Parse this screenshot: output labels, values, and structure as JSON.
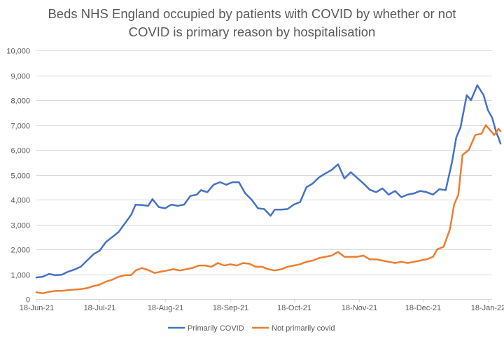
{
  "chart_data": {
    "type": "line",
    "title_lines": [
      "Beds NHS England occupied by patients with COVID by whether or not",
      "COVID is primary reason by hospitalisation"
    ],
    "xlabel": "",
    "ylabel": "",
    "ylim": [
      0,
      10000
    ],
    "y_ticks": [
      0,
      1000,
      2000,
      3000,
      4000,
      5000,
      6000,
      7000,
      8000,
      9000,
      10000
    ],
    "y_tick_labels": [
      "0",
      "1,000",
      "2,000",
      "3,000",
      "4,000",
      "5,000",
      "6,000",
      "7,000",
      "8,000",
      "9,000",
      "10,000"
    ],
    "x_tick_labels": [
      "18-Jun-21",
      "18-Jul-21",
      "18-Aug-21",
      "18-Sep-21",
      "18-Oct-21",
      "18-Nov-21",
      "18-Dec-21",
      "18-Jan-22"
    ],
    "x_ticks": [
      "2021-06-18",
      "2021-07-18",
      "2021-08-18",
      "2021-09-18",
      "2021-10-18",
      "2021-11-18",
      "2021-12-18",
      "2022-01-18"
    ],
    "x_range": [
      "2021-06-18",
      "2022-01-20"
    ],
    "grid": "horizontal",
    "legend_position": "bottom",
    "series": [
      {
        "name": "Primarily COVID",
        "color": "#4472C4",
        "points": [
          [
            "2021-06-18",
            870
          ],
          [
            "2021-06-21",
            900
          ],
          [
            "2021-06-24",
            1010
          ],
          [
            "2021-06-27",
            960
          ],
          [
            "2021-06-30",
            980
          ],
          [
            "2021-07-03",
            1100
          ],
          [
            "2021-07-06",
            1190
          ],
          [
            "2021-07-09",
            1300
          ],
          [
            "2021-07-12",
            1550
          ],
          [
            "2021-07-15",
            1800
          ],
          [
            "2021-07-18",
            1950
          ],
          [
            "2021-07-21",
            2300
          ],
          [
            "2021-07-24",
            2500
          ],
          [
            "2021-07-27",
            2700
          ],
          [
            "2021-07-30",
            3050
          ],
          [
            "2021-08-02",
            3400
          ],
          [
            "2021-08-04",
            3800
          ],
          [
            "2021-08-07",
            3780
          ],
          [
            "2021-08-10",
            3750
          ],
          [
            "2021-08-12",
            4020
          ],
          [
            "2021-08-15",
            3700
          ],
          [
            "2021-08-18",
            3650
          ],
          [
            "2021-08-21",
            3800
          ],
          [
            "2021-08-24",
            3750
          ],
          [
            "2021-08-27",
            3800
          ],
          [
            "2021-08-30",
            4150
          ],
          [
            "2021-09-02",
            4200
          ],
          [
            "2021-09-04",
            4380
          ],
          [
            "2021-09-07",
            4300
          ],
          [
            "2021-09-10",
            4600
          ],
          [
            "2021-09-13",
            4700
          ],
          [
            "2021-09-16",
            4600
          ],
          [
            "2021-09-19",
            4700
          ],
          [
            "2021-09-22",
            4700
          ],
          [
            "2021-09-25",
            4250
          ],
          [
            "2021-09-28",
            4000
          ],
          [
            "2021-10-01",
            3650
          ],
          [
            "2021-10-04",
            3620
          ],
          [
            "2021-10-07",
            3350
          ],
          [
            "2021-10-09",
            3600
          ],
          [
            "2021-10-12",
            3600
          ],
          [
            "2021-10-15",
            3620
          ],
          [
            "2021-10-18",
            3800
          ],
          [
            "2021-10-21",
            3900
          ],
          [
            "2021-10-24",
            4500
          ],
          [
            "2021-10-27",
            4650
          ],
          [
            "2021-10-30",
            4900
          ],
          [
            "2021-11-02",
            5050
          ],
          [
            "2021-11-05",
            5200
          ],
          [
            "2021-11-08",
            5420
          ],
          [
            "2021-11-11",
            4850
          ],
          [
            "2021-11-14",
            5100
          ],
          [
            "2021-11-17",
            4880
          ],
          [
            "2021-11-20",
            4650
          ],
          [
            "2021-11-23",
            4400
          ],
          [
            "2021-11-26",
            4300
          ],
          [
            "2021-11-29",
            4450
          ],
          [
            "2021-12-02",
            4200
          ],
          [
            "2021-12-05",
            4350
          ],
          [
            "2021-12-08",
            4100
          ],
          [
            "2021-12-11",
            4200
          ],
          [
            "2021-12-14",
            4250
          ],
          [
            "2021-12-17",
            4350
          ],
          [
            "2021-12-20",
            4300
          ],
          [
            "2021-12-23",
            4200
          ],
          [
            "2021-12-26",
            4420
          ],
          [
            "2021-12-29",
            4380
          ],
          [
            "2022-01-01",
            5500
          ],
          [
            "2022-01-03",
            6500
          ],
          [
            "2022-01-05",
            6900
          ],
          [
            "2022-01-08",
            8200
          ],
          [
            "2022-01-10",
            8000
          ],
          [
            "2022-01-13",
            8600
          ],
          [
            "2022-01-16",
            8200
          ],
          [
            "2022-01-18",
            7600
          ],
          [
            "2022-01-20",
            7300
          ],
          [
            "2022-01-22",
            6700
          ],
          [
            "2022-01-23",
            6500
          ],
          [
            "2022-01-24",
            6250
          ]
        ]
      },
      {
        "name": "Not primarily covid",
        "color": "#ED7D31",
        "points": [
          [
            "2021-06-18",
            270
          ],
          [
            "2021-06-21",
            230
          ],
          [
            "2021-06-24",
            290
          ],
          [
            "2021-06-27",
            330
          ],
          [
            "2021-06-30",
            330
          ],
          [
            "2021-07-03",
            360
          ],
          [
            "2021-07-06",
            380
          ],
          [
            "2021-07-09",
            400
          ],
          [
            "2021-07-12",
            440
          ],
          [
            "2021-07-15",
            520
          ],
          [
            "2021-07-18",
            580
          ],
          [
            "2021-07-21",
            700
          ],
          [
            "2021-07-24",
            780
          ],
          [
            "2021-07-27",
            900
          ],
          [
            "2021-07-30",
            960
          ],
          [
            "2021-08-02",
            970
          ],
          [
            "2021-08-04",
            1150
          ],
          [
            "2021-08-07",
            1250
          ],
          [
            "2021-08-10",
            1170
          ],
          [
            "2021-08-13",
            1050
          ],
          [
            "2021-08-16",
            1100
          ],
          [
            "2021-08-19",
            1150
          ],
          [
            "2021-08-22",
            1200
          ],
          [
            "2021-08-25",
            1150
          ],
          [
            "2021-08-28",
            1200
          ],
          [
            "2021-08-31",
            1250
          ],
          [
            "2021-09-03",
            1350
          ],
          [
            "2021-09-06",
            1350
          ],
          [
            "2021-09-09",
            1300
          ],
          [
            "2021-09-12",
            1450
          ],
          [
            "2021-09-15",
            1350
          ],
          [
            "2021-09-18",
            1400
          ],
          [
            "2021-09-21",
            1350
          ],
          [
            "2021-09-24",
            1450
          ],
          [
            "2021-09-27",
            1420
          ],
          [
            "2021-09-30",
            1300
          ],
          [
            "2021-10-03",
            1300
          ],
          [
            "2021-10-06",
            1200
          ],
          [
            "2021-10-09",
            1150
          ],
          [
            "2021-10-12",
            1200
          ],
          [
            "2021-10-15",
            1300
          ],
          [
            "2021-10-18",
            1350
          ],
          [
            "2021-10-21",
            1400
          ],
          [
            "2021-10-24",
            1500
          ],
          [
            "2021-10-27",
            1550
          ],
          [
            "2021-10-30",
            1650
          ],
          [
            "2021-11-02",
            1700
          ],
          [
            "2021-11-05",
            1750
          ],
          [
            "2021-11-08",
            1900
          ],
          [
            "2021-11-11",
            1700
          ],
          [
            "2021-11-14",
            1700
          ],
          [
            "2021-11-17",
            1700
          ],
          [
            "2021-11-20",
            1750
          ],
          [
            "2021-11-23",
            1600
          ],
          [
            "2021-11-26",
            1600
          ],
          [
            "2021-11-29",
            1550
          ],
          [
            "2021-12-02",
            1500
          ],
          [
            "2021-12-05",
            1450
          ],
          [
            "2021-12-08",
            1500
          ],
          [
            "2021-12-11",
            1450
          ],
          [
            "2021-12-14",
            1500
          ],
          [
            "2021-12-17",
            1550
          ],
          [
            "2021-12-20",
            1600
          ],
          [
            "2021-12-23",
            1700
          ],
          [
            "2021-12-25",
            2000
          ],
          [
            "2021-12-28",
            2100
          ],
          [
            "2021-12-31",
            2800
          ],
          [
            "2022-01-02",
            3800
          ],
          [
            "2022-01-04",
            4200
          ],
          [
            "2022-01-06",
            5800
          ],
          [
            "2022-01-09",
            6000
          ],
          [
            "2022-01-12",
            6600
          ],
          [
            "2022-01-15",
            6650
          ],
          [
            "2022-01-17",
            7000
          ],
          [
            "2022-01-19",
            6800
          ],
          [
            "2022-01-21",
            6600
          ],
          [
            "2022-01-22",
            6700
          ],
          [
            "2022-01-23",
            6850
          ],
          [
            "2022-01-24",
            6750
          ]
        ]
      }
    ]
  }
}
